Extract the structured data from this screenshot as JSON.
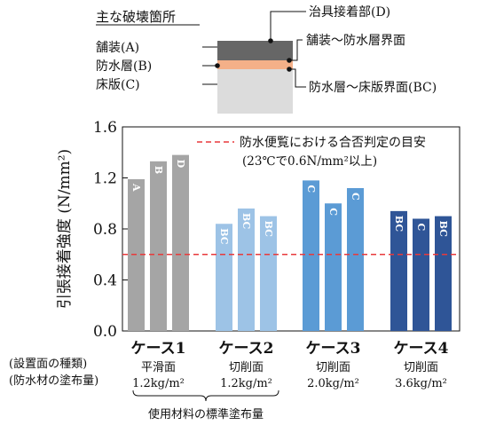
{
  "diagram": {
    "title": "主な破壊箇所",
    "labels": {
      "jig_interface": "治具接着部(D)",
      "pavement": "舗装(A)",
      "pavement_waterproof_interface": "舗装〜防水層界面",
      "waterproof_layer": "防水層(B)",
      "waterproof_slab_interface": "防水層〜床版界面(BC)",
      "slab": "床版(C)"
    },
    "colors": {
      "pavement": "#666666",
      "waterproof": "#f4b088",
      "slab": "#dcdcdc"
    }
  },
  "legend": {
    "line1": "防水便覧における合否判定の目安",
    "line2": "(23℃で0.6N/mm²以上)"
  },
  "axis_labels": {
    "row1": "(設置面の種類)",
    "row2": "(防水材の塗布量)"
  },
  "bracket_label": "使用材料の標準塗布量",
  "chart_data": {
    "type": "bar",
    "ylabel": "引張接着強度 (N/mm²)",
    "ylim": [
      0,
      1.6
    ],
    "yticks": [
      "0.0",
      "0.4",
      "0.8",
      "1.2",
      "1.6"
    ],
    "threshold": 0.6,
    "threshold_color": "#e8393b",
    "grid": false,
    "legend_position": "top-right",
    "groups": [
      {
        "name": "ケース1",
        "surface": "平滑面",
        "amount": "1.2kg/m²",
        "color": "#a5a5a5",
        "bars": [
          {
            "value": 1.19,
            "label": "A"
          },
          {
            "value": 1.33,
            "label": "B"
          },
          {
            "value": 1.38,
            "label": "D"
          }
        ]
      },
      {
        "name": "ケース2",
        "surface": "切削面",
        "amount": "1.2kg/m²",
        "color": "#9dc3e6",
        "bars": [
          {
            "value": 0.84,
            "label": "BC"
          },
          {
            "value": 0.96,
            "label": "BC"
          },
          {
            "value": 0.9,
            "label": "BC"
          }
        ]
      },
      {
        "name": "ケース3",
        "surface": "切削面",
        "amount": "2.0kg/m²",
        "color": "#5b9bd5",
        "bars": [
          {
            "value": 1.18,
            "label": "C"
          },
          {
            "value": 1.0,
            "label": "C"
          },
          {
            "value": 1.12,
            "label": "C"
          }
        ]
      },
      {
        "name": "ケース4",
        "surface": "切削面",
        "amount": "3.6kg/m²",
        "color": "#2f5597",
        "bars": [
          {
            "value": 0.94,
            "label": "BC"
          },
          {
            "value": 0.88,
            "label": "C"
          },
          {
            "value": 0.9,
            "label": "BC"
          }
        ]
      }
    ]
  }
}
